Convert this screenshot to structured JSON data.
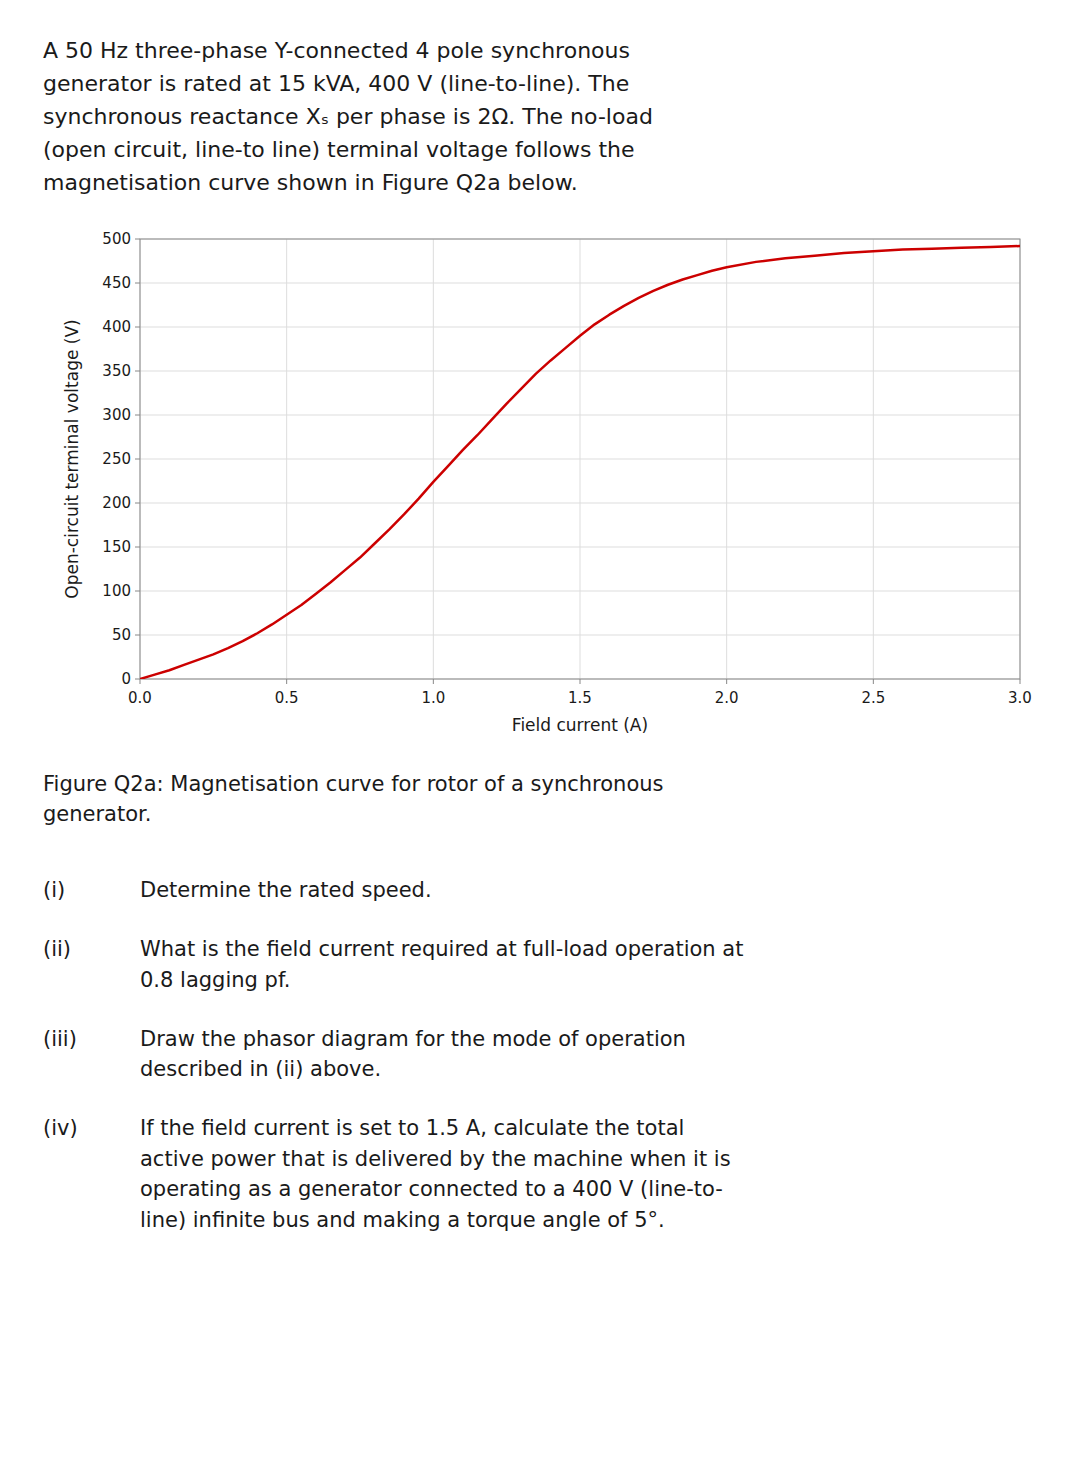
{
  "chart_data": {
    "type": "line",
    "title": "A 50 Hz three-phase Y-connected 4 pole synchronous\ngenerator is rated at 15 kVA, 400 V (line-to-line). The\nsynchronous reactance Xₛ per phase is 2Ω. The no-load\n(open circuit, line-to line) terminal voltage follows the\nmagnetisation curve shown in Figure Q2a below.",
    "x_label": "Field current (A)",
    "y_label": "Open-circuit terminal voltage (V)",
    "x": [
      0.0,
      0.05,
      0.1,
      0.15,
      0.2,
      0.25,
      0.3,
      0.35,
      0.4,
      0.45,
      0.5,
      0.55,
      0.6,
      0.65,
      0.7,
      0.75,
      0.8,
      0.85,
      0.9,
      0.95,
      1.0,
      1.05,
      1.1,
      1.15,
      1.2,
      1.25,
      1.3,
      1.35,
      1.4,
      1.45,
      1.5,
      1.55,
      1.6,
      1.65,
      1.7,
      1.75,
      1.8,
      1.85,
      1.9,
      1.95,
      2.0,
      2.1,
      2.2,
      2.3,
      2.4,
      2.5,
      2.6,
      2.7,
      2.8,
      2.9,
      3.0
    ],
    "values": [
      0,
      5,
      10,
      16,
      22,
      28,
      35,
      43,
      52,
      62,
      73,
      84,
      97,
      110,
      124,
      138,
      154,
      170,
      187,
      205,
      224,
      242,
      260,
      277,
      295,
      313,
      330,
      347,
      362,
      376,
      390,
      403,
      414,
      424,
      433,
      441,
      448,
      454,
      459,
      464,
      468,
      474,
      478,
      481,
      484,
      486,
      488,
      489,
      490,
      491,
      492
    ],
    "color": "#cc0000",
    "xlim": [
      0,
      3
    ],
    "ylim": [
      0,
      500
    ],
    "xticks": [
      {
        "value": 0,
        "label": "0.0"
      },
      0.5,
      {
        "value": 1,
        "label": "1.0"
      },
      1.5,
      {
        "value": 2,
        "label": "2.0"
      },
      2.5,
      {
        "value": 3,
        "label": "3.0"
      }
    ],
    "yticks": [
      0,
      50,
      100,
      150,
      200,
      250,
      300,
      350,
      400,
      450,
      500
    ],
    "grid": true,
    "annotations": [
      "Figure Q2a: Magnetisation curve for rotor of a synchronous\ngenerator.",
      "(i)",
      "Determine the rated speed.",
      "(ii)",
      "What is the field current required at full-load operation at\n0.8 lagging pf.",
      "(iii)",
      "Draw the phasor diagram for the mode of operation\ndescribed in (ii) above.",
      "(iv)",
      "If the field current is set to 1.5 A, calculate the total\nactive power that is delivered by the machine when it is\noperating as a generator connected to a 400 V (line-to-\nline) infinite bus and making a torque angle of 5°."
    ]
  }
}
